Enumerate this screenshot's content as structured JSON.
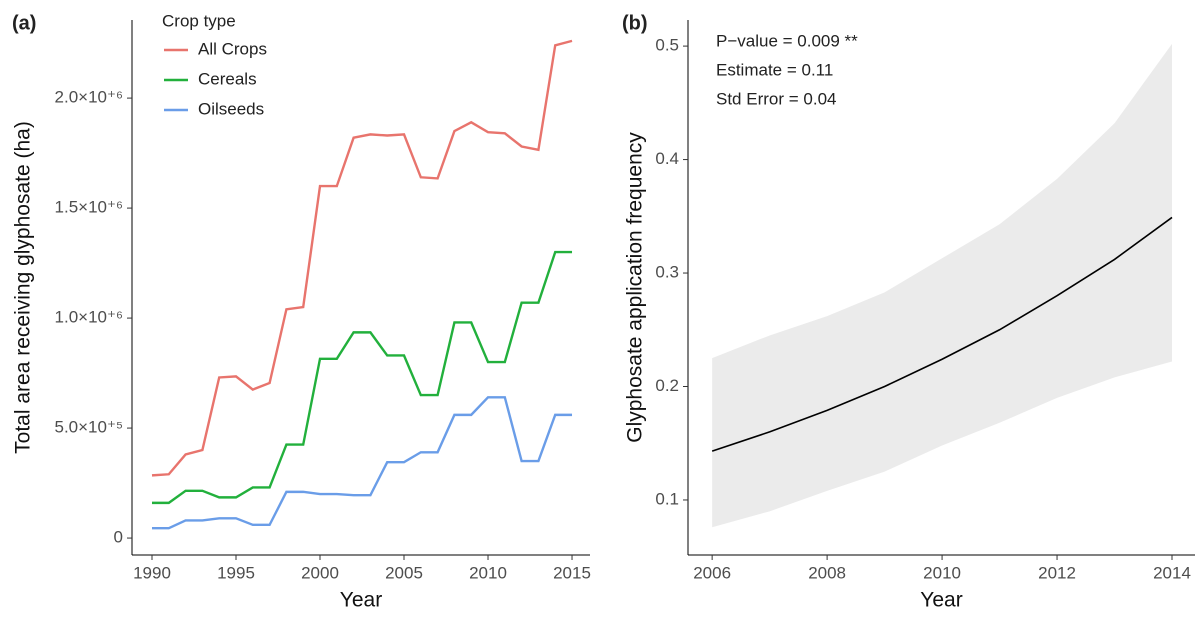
{
  "chart_data": [
    {
      "type": "line",
      "panel_label": "(a)",
      "x_label": "Year",
      "y_label": "Total area receiving glyphosate (ha)",
      "legend_title": "Crop type",
      "legend": "top-left",
      "x": [
        1990,
        1991,
        1992,
        1993,
        1994,
        1995,
        1996,
        1997,
        1998,
        1999,
        2000,
        2001,
        2002,
        2003,
        2004,
        2005,
        2006,
        2007,
        2008,
        2009,
        2010,
        2011,
        2012,
        2013,
        2014,
        2015
      ],
      "series": [
        {
          "name": "All Crops",
          "color": "#e8746d",
          "values": [
            285000,
            290000,
            380000,
            400000,
            730000,
            735000,
            675000,
            705000,
            1040000,
            1050000,
            1600000,
            1600000,
            1820000,
            1835000,
            1830000,
            1835000,
            1640000,
            1635000,
            1850000,
            1890000,
            1845000,
            1840000,
            1780000,
            1765000,
            2240000,
            2260000
          ]
        },
        {
          "name": "Cereals",
          "color": "#22b03c",
          "values": [
            160000,
            160000,
            215000,
            215000,
            185000,
            185000,
            230000,
            230000,
            425000,
            425000,
            815000,
            815000,
            935000,
            935000,
            830000,
            830000,
            650000,
            650000,
            980000,
            980000,
            800000,
            800000,
            1070000,
            1070000,
            1300000,
            1300000
          ]
        },
        {
          "name": "Oilseeds",
          "color": "#6a9de8",
          "values": [
            45000,
            45000,
            80000,
            80000,
            90000,
            90000,
            60000,
            60000,
            210000,
            210000,
            200000,
            200000,
            195000,
            195000,
            345000,
            345000,
            390000,
            390000,
            560000,
            560000,
            640000,
            640000,
            350000,
            350000,
            560000,
            560000
          ]
        }
      ],
      "xlim": [
        1988.81,
        2016.07
      ],
      "xticks": [
        1990,
        1995,
        2000,
        2005,
        2010,
        2015
      ],
      "ylim": [
        -77000,
        2355000
      ],
      "yticks": [
        0,
        {
          "value": 500000,
          "label": "5.0×10⁺⁵"
        },
        {
          "value": 1000000,
          "label": "1.0×10⁺⁶"
        },
        {
          "value": 1500000,
          "label": "1.5×10⁺⁶"
        },
        {
          "value": 2000000,
          "label": "2.0×10⁺⁶"
        }
      ],
      "grid": false
    },
    {
      "type": "ribbon",
      "panel_label": "(b)",
      "x_label": "Year",
      "y_label": "Glyphosate application frequency",
      "annotations": [
        "P−value = 0.009 **",
        "Estimate = 0.11",
        "Std Error = 0.04"
      ],
      "x": [
        2006,
        2007,
        2008,
        2009,
        2010,
        2011,
        2012,
        2013,
        2014
      ],
      "values": [
        0.143,
        0.16,
        0.179,
        0.2,
        0.224,
        0.25,
        0.28,
        0.312,
        0.349
      ],
      "lower": [
        0.076,
        0.09,
        0.108,
        0.125,
        0.148,
        0.168,
        0.19,
        0.208,
        0.222
      ],
      "upper": [
        0.225,
        0.245,
        0.262,
        0.283,
        0.313,
        0.343,
        0.383,
        0.432,
        0.502
      ],
      "color": "#000000",
      "band_color": "#ebebeb",
      "xlim": [
        2005.58,
        2014.4
      ],
      "xticks": [
        2006,
        2008,
        2010,
        2012,
        2014
      ],
      "ylim": [
        0.0515,
        0.523
      ],
      "yticks": [
        0.1,
        0.2,
        0.3,
        0.4,
        0.5
      ],
      "grid": false
    }
  ]
}
